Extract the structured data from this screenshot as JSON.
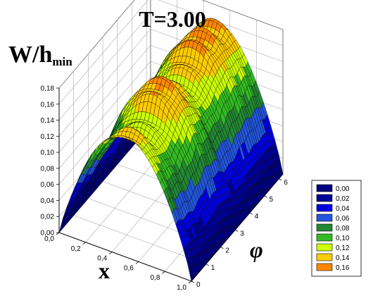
{
  "chart_data": {
    "type": "surface",
    "title": "T=3.00",
    "zlabel_main": "W/h",
    "zlabel_sub": "min",
    "xlabel": "x",
    "ylabel": "φ",
    "x_ticks": [
      "0,0",
      "0,2",
      "0,4",
      "0,6",
      "0,8",
      "1,0"
    ],
    "x_tick_values": [
      0.0,
      0.2,
      0.4,
      0.6,
      0.8,
      1.0
    ],
    "y_ticks": [
      "0",
      "1",
      "2",
      "3",
      "4",
      "5",
      "6"
    ],
    "y_tick_values": [
      0,
      1,
      2,
      3,
      4,
      5,
      6
    ],
    "z_ticks": [
      "0,00",
      "0,02",
      "0,04",
      "0,06",
      "0,08",
      "0,10",
      "0,12",
      "0,14",
      "0,16",
      "0,18"
    ],
    "z_tick_values": [
      0.0,
      0.02,
      0.04,
      0.06,
      0.08,
      0.1,
      0.12,
      0.14,
      0.16,
      0.18
    ],
    "xlim": [
      0,
      1
    ],
    "ylim": [
      0,
      6.28
    ],
    "zlim": [
      0,
      0.18
    ],
    "grid": true,
    "legend_position": "right",
    "legend": [
      {
        "label": "0,00",
        "color": "#000080"
      },
      {
        "label": "0,02",
        "color": "#000099"
      },
      {
        "label": "0,04",
        "color": "#0000e6"
      },
      {
        "label": "0,06",
        "color": "#2255dd"
      },
      {
        "label": "0,08",
        "color": "#228833"
      },
      {
        "label": "0,10",
        "color": "#33bb22"
      },
      {
        "label": "0,12",
        "color": "#ccff00"
      },
      {
        "label": "0,14",
        "color": "#ffcc00"
      },
      {
        "label": "0,16",
        "color": "#ff8800"
      }
    ],
    "surface_peaks": [
      {
        "x": 0.5,
        "phi": 0.0,
        "w": 0.15
      },
      {
        "x": 0.5,
        "phi": 1.2,
        "w": 0.135
      },
      {
        "x": 0.5,
        "phi": 2.4,
        "w": 0.165
      },
      {
        "x": 0.5,
        "phi": 3.6,
        "w": 0.14
      },
      {
        "x": 0.5,
        "phi": 5.0,
        "w": 0.165
      },
      {
        "x": 0.5,
        "phi": 6.28,
        "w": 0.16
      }
    ]
  }
}
